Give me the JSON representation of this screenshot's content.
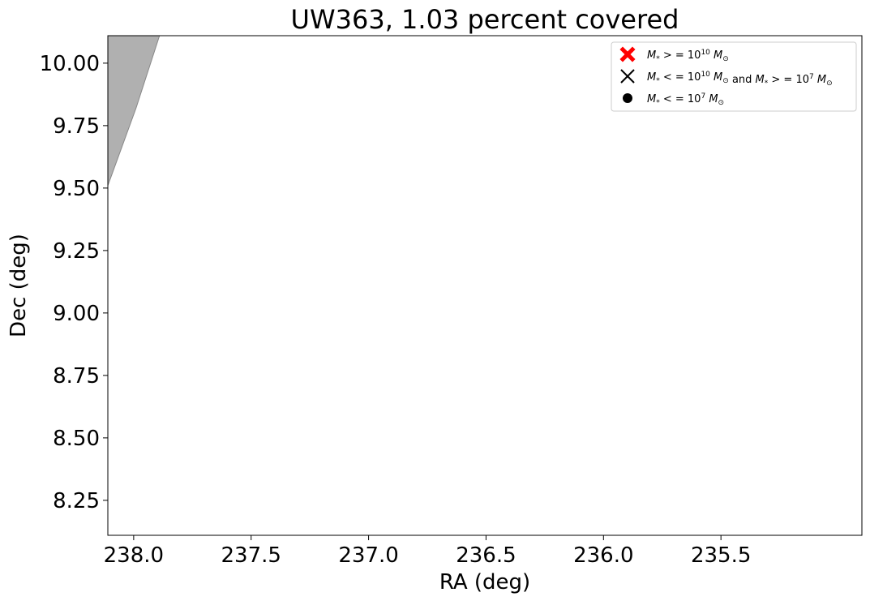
{
  "chart_data": {
    "type": "scatter",
    "title": "UW363, 1.03 percent covered",
    "xlabel": "RA (deg)",
    "ylabel": "Dec (deg)",
    "xlim": [
      238.11,
      234.9
    ],
    "ylim": [
      8.11,
      10.11
    ],
    "x_inverted": true,
    "grid": false,
    "xticks": [
      {
        "value": 238.0,
        "label": "238.0"
      },
      {
        "value": 237.5,
        "label": "237.5"
      },
      {
        "value": 237.0,
        "label": "237.0"
      },
      {
        "value": 236.5,
        "label": "236.5"
      },
      {
        "value": 236.0,
        "label": "236.0"
      },
      {
        "value": 235.5,
        "label": "235.5"
      }
    ],
    "yticks": [
      {
        "value": 8.25,
        "label": "8.25"
      },
      {
        "value": 8.5,
        "label": "8.50"
      },
      {
        "value": 8.75,
        "label": "8.75"
      },
      {
        "value": 9.0,
        "label": "9.00"
      },
      {
        "value": 9.25,
        "label": "9.25"
      },
      {
        "value": 9.5,
        "label": "9.50"
      },
      {
        "value": 9.75,
        "label": "9.75"
      },
      {
        "value": 10.0,
        "label": "10.00"
      }
    ],
    "coverage_region": {
      "color": "#b0b0b0",
      "edge_color": "#888888",
      "points": [
        [
          238.11,
          9.51
        ],
        [
          237.99,
          9.82
        ],
        [
          237.89,
          10.11
        ],
        [
          238.11,
          10.11
        ]
      ]
    },
    "legend": {
      "placement": "top-right",
      "entries": [
        {
          "marker": "filled-x",
          "color": "#ff0000",
          "label_main": "M",
          "label_sub": "*",
          "label_mid": " > = 10",
          "label_sup": "10",
          "label_end_main": "M",
          "label_end_sub": "⊙"
        },
        {
          "marker": "x",
          "color": "#000000",
          "label_main": "M",
          "label_sub": "*",
          "label_mid": " < = 10",
          "label_sup": "10",
          "label_end_main": "M",
          "label_end_sub": "⊙",
          "label_and": " and ",
          "label_main2": "M",
          "label_sub2": "*",
          "label_mid2": " > = 10",
          "label_sup2": "7",
          "label_end_main2": "M",
          "label_end_sub2": "⊙"
        },
        {
          "marker": "dot",
          "color": "#000000",
          "label_main": "M",
          "label_sub": "*",
          "label_mid": " < = 10",
          "label_sup": "7",
          "label_end_main": "M",
          "label_end_sub": "⊙"
        }
      ]
    },
    "series": [
      {
        "marker": "filled-x",
        "color": "#ff0000",
        "points": []
      },
      {
        "marker": "x",
        "color": "#000000",
        "points": []
      },
      {
        "marker": "dot",
        "color": "#000000",
        "points": []
      }
    ]
  }
}
